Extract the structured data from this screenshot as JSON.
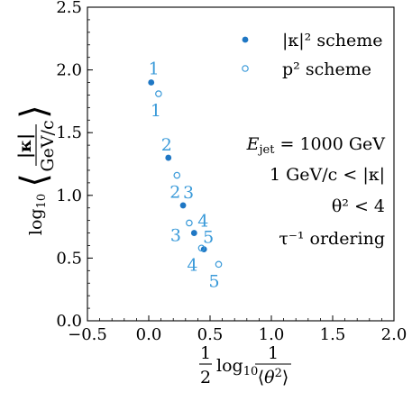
{
  "chart_data": {
    "type": "scatter",
    "xlabel": "½ log₁₀ 1/⟨θ²⟩",
    "ylabel": "log₁₀ ⟨|κ| / (GeV/c)⟩",
    "xlim": [
      -0.5,
      2.0
    ],
    "ylim": [
      0.0,
      2.5
    ],
    "x_ticks": [
      -0.5,
      0.0,
      0.5,
      1.0,
      1.5,
      2.0
    ],
    "x_tick_labels": [
      "−0.5",
      "0.0",
      "0.5",
      "1.0",
      "1.5",
      "2.0"
    ],
    "y_ticks": [
      0.0,
      0.5,
      1.0,
      1.5,
      2.0,
      2.5
    ],
    "y_tick_labels": [
      "0.0",
      "0.5",
      "1.0",
      "1.5",
      "2.0",
      "2.5"
    ],
    "grid": false,
    "legend_position": "top-right",
    "series": [
      {
        "name": "|κ|² scheme",
        "marker": "filled-circle",
        "color": "#1f77c4",
        "x": [
          0.02,
          0.16,
          0.28,
          0.37,
          0.45
        ],
        "y": [
          1.9,
          1.3,
          0.92,
          0.7,
          0.57
        ],
        "labels": [
          "1",
          "2",
          "3",
          "4",
          "5"
        ]
      },
      {
        "name": "p² scheme",
        "marker": "open-circle",
        "color": "#3a9ad9",
        "x": [
          0.08,
          0.23,
          0.33,
          0.43,
          0.57
        ],
        "y": [
          1.81,
          1.16,
          0.78,
          0.58,
          0.45
        ],
        "labels": [
          "1",
          "2",
          "3",
          "4",
          "5"
        ]
      }
    ],
    "annotations": [
      "E_jet = 1000 GeV",
      "1 GeV/c < |κ|",
      "θ² < 4",
      "τ⁻¹ ordering"
    ]
  },
  "text": {
    "ann_energy_main": "E",
    "ann_energy_sub": "jet",
    "ann_energy_rest": " = 1000 GeV",
    "ann_cut_kappa": "1 GeV/c < |κ|",
    "ann_cut_theta": "θ² < 4",
    "ann_ordering": "τ⁻¹ ordering",
    "legend_kappa": "|κ|² scheme",
    "legend_p": "p² scheme"
  }
}
